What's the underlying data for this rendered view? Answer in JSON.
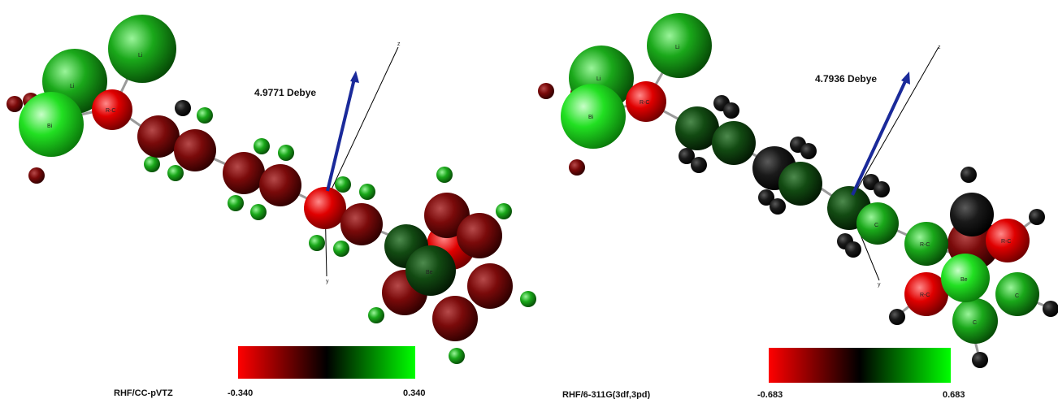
{
  "panels": [
    {
      "dipole_label": "4.9771 Debye",
      "method_label": "RHF/CC-pVTZ",
      "scale_min": "-0.340",
      "scale_max": "0.340",
      "axis_z": "z",
      "axis_y": "y",
      "atom_labels": [
        "Li",
        "Li",
        "Bi",
        "R-C",
        "C",
        "C",
        "Be"
      ]
    },
    {
      "dipole_label": "4.7936 Debye",
      "method_label": "RHF/6-311G(3df,3pd)",
      "scale_min": "-0.683",
      "scale_max": "0.683",
      "axis_z": "z",
      "axis_y": "y",
      "atom_labels": [
        "Li",
        "Li",
        "Bi",
        "R-C",
        "C",
        "R-C",
        "R-C",
        "Be",
        "R-C",
        "C",
        "C"
      ]
    }
  ],
  "colors": {
    "negative": "#ff0000",
    "neutral": "#000000",
    "positive": "#00ff00",
    "dipole_arrow": "#1a2a9a"
  }
}
